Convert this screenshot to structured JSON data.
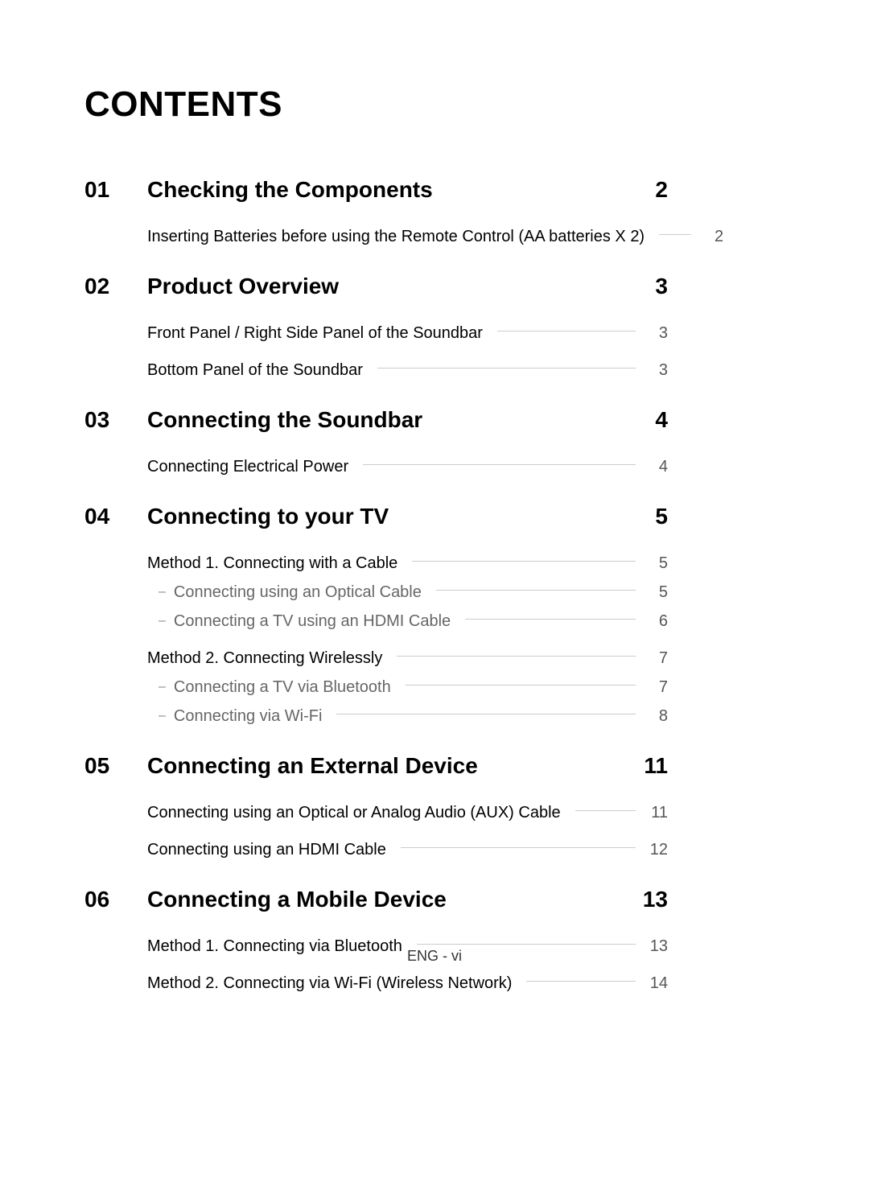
{
  "title": "CONTENTS",
  "footer": "ENG - vi",
  "sections": [
    {
      "num": "01",
      "title": "Checking the Components",
      "page": "2",
      "entries": [
        {
          "text": "Inserting Batteries before using the Remote Control (AA batteries X 2)",
          "page": "2",
          "type": "main"
        }
      ]
    },
    {
      "num": "02",
      "title": "Product Overview",
      "page": "3",
      "entries": [
        {
          "text": "Front Panel / Right Side Panel of the Soundbar",
          "page": "3",
          "type": "main"
        },
        {
          "text": "Bottom Panel of the Soundbar",
          "page": "3",
          "type": "main",
          "spaced": true
        }
      ]
    },
    {
      "num": "03",
      "title": "Connecting the Soundbar",
      "page": "4",
      "entries": [
        {
          "text": "Connecting Electrical Power",
          "page": "4",
          "type": "main"
        }
      ]
    },
    {
      "num": "04",
      "title": "Connecting to your TV",
      "page": "5",
      "entries": [
        {
          "text": "Method 1. Connecting with a Cable",
          "page": "5",
          "type": "main"
        },
        {
          "text": "Connecting using an Optical Cable",
          "page": "5",
          "type": "sub"
        },
        {
          "text": "Connecting a TV using an HDMI Cable",
          "page": "6",
          "type": "sub"
        },
        {
          "text": "Method 2. Connecting Wirelessly",
          "page": "7",
          "type": "main",
          "spaced": true
        },
        {
          "text": "Connecting a TV via Bluetooth",
          "page": "7",
          "type": "sub"
        },
        {
          "text": "Connecting via Wi-Fi",
          "page": "8",
          "type": "sub"
        }
      ]
    },
    {
      "num": "05",
      "title": "Connecting an External Device",
      "page": "11",
      "entries": [
        {
          "text": "Connecting using an Optical or Analog Audio (AUX) Cable",
          "page": "11",
          "type": "main"
        },
        {
          "text": "Connecting using an HDMI Cable",
          "page": "12",
          "type": "main",
          "spaced": true
        }
      ]
    },
    {
      "num": "06",
      "title": "Connecting a Mobile Device",
      "page": "13",
      "entries": [
        {
          "text": "Method 1. Connecting via Bluetooth",
          "page": "13",
          "type": "main"
        },
        {
          "text": "Method 2. Connecting via Wi-Fi (Wireless Network)",
          "page": "14",
          "type": "main",
          "spaced": true
        }
      ]
    }
  ]
}
